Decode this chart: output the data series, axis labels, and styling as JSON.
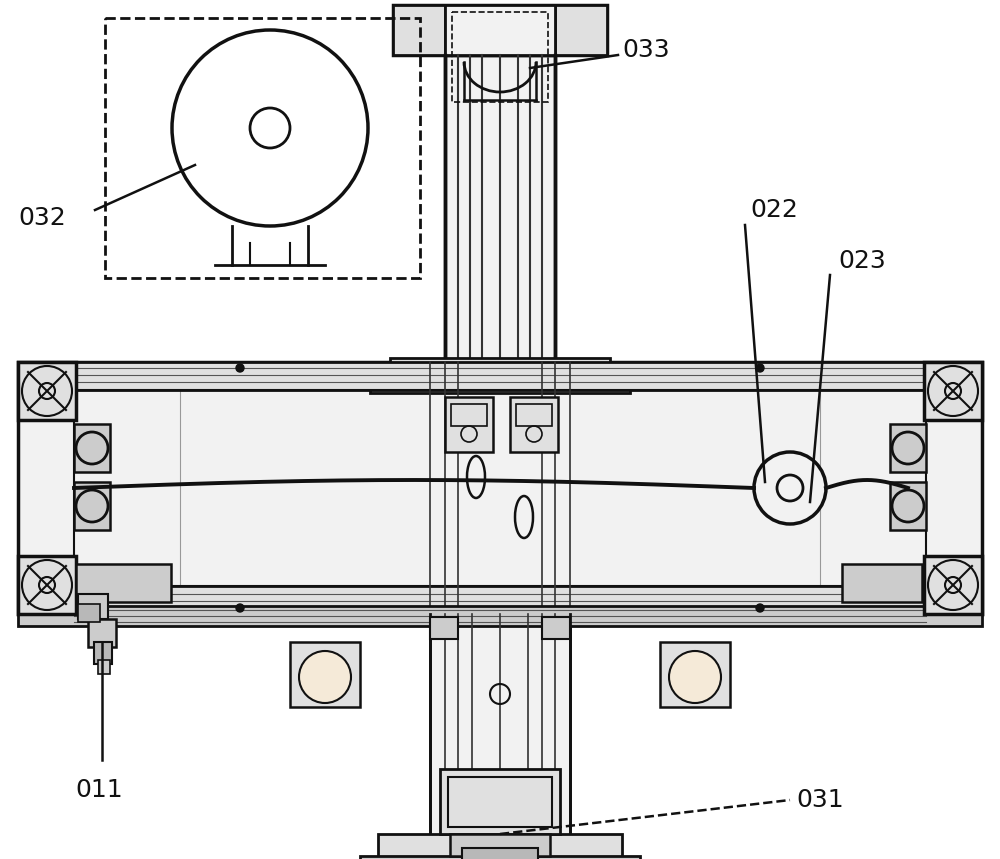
{
  "bg": "#ffffff",
  "lc": "#111111",
  "g1": "#f2f2f2",
  "g2": "#e0e0e0",
  "g3": "#cccccc",
  "g4": "#b8b8b8",
  "lfs": 18,
  "figsize": [
    10.0,
    8.59
  ],
  "dpi": 100
}
